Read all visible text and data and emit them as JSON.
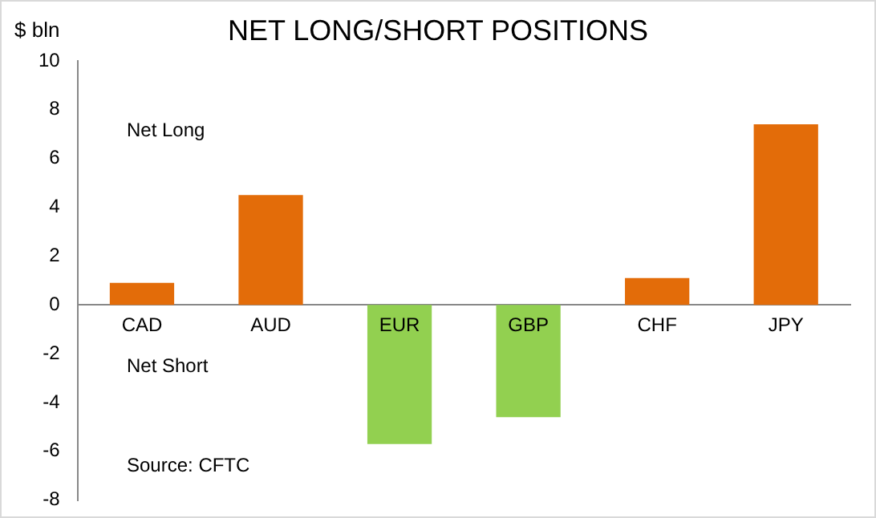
{
  "chart_data": {
    "type": "bar",
    "title": "NET LONG/SHORT POSITIONS",
    "ylabel": "$ bln",
    "categories": [
      "CAD",
      "AUD",
      "EUR",
      "GBP",
      "CHF",
      "JPY"
    ],
    "values": [
      0.9,
      4.5,
      -5.7,
      -4.6,
      1.1,
      7.4
    ],
    "colors": [
      "#e36c09",
      "#e36c09",
      "#92d050",
      "#92d050",
      "#e36c09",
      "#e36c09"
    ],
    "ylim": [
      -8,
      10
    ],
    "yticks": [
      -8,
      -6,
      -4,
      -2,
      0,
      2,
      4,
      6,
      8,
      10
    ],
    "grid": false,
    "annotations": [
      "Net Long",
      "Net Short",
      "Source: CFTC"
    ]
  }
}
